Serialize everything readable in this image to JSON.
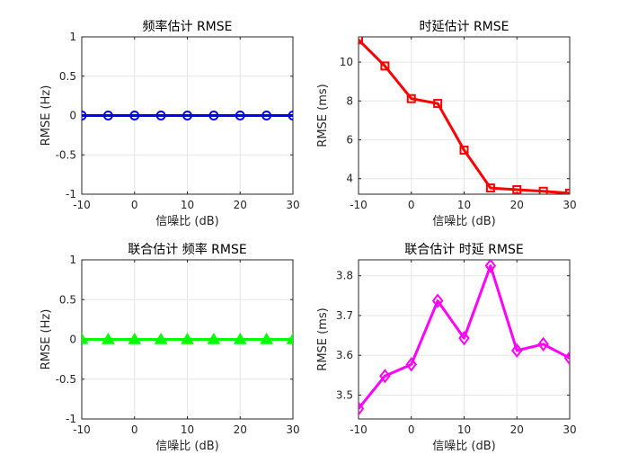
{
  "chart_data": [
    {
      "type": "line",
      "title": "频率估计 RMSE",
      "xlabel": "信噪比 (dB)",
      "ylabel": "RMSE (Hz)",
      "xlim": [
        -10,
        30
      ],
      "ylim": [
        -1,
        1
      ],
      "xticks": [
        "-10",
        "0",
        "10",
        "20",
        "30"
      ],
      "yticks": [
        "-1",
        "-0.5",
        "0",
        "0.5",
        "1"
      ],
      "grid": true,
      "color": "#0000ff",
      "marker": "circle",
      "series": [
        {
          "x": [
            -10,
            -5,
            0,
            5,
            10,
            15,
            20,
            25,
            30
          ],
          "values": [
            0,
            0,
            0,
            0,
            0,
            0,
            0,
            0,
            0
          ]
        }
      ]
    },
    {
      "type": "line",
      "title": "时延估计 RMSE",
      "xlabel": "信噪比 (dB)",
      "ylabel": "RMSE (ms)",
      "xlim": [
        -10,
        30
      ],
      "ylim": [
        3.2,
        11.3
      ],
      "xticks": [
        "-10",
        "0",
        "10",
        "20",
        "30"
      ],
      "yticks": [
        "4",
        "6",
        "8",
        "10"
      ],
      "grid": true,
      "color": "#ff0000",
      "marker": "square",
      "series": [
        {
          "x": [
            -10,
            -5,
            0,
            5,
            10,
            15,
            20,
            25,
            30
          ],
          "values": [
            11.15,
            9.8,
            8.12,
            7.87,
            5.47,
            3.52,
            3.43,
            3.35,
            3.25
          ]
        }
      ]
    },
    {
      "type": "line",
      "title": "联合估计 频率 RMSE",
      "xlabel": "信噪比 (dB)",
      "ylabel": "RMSE (Hz)",
      "xlim": [
        -10,
        30
      ],
      "ylim": [
        -1,
        1
      ],
      "xticks": [
        "-10",
        "0",
        "10",
        "20",
        "30"
      ],
      "yticks": [
        "-1",
        "-0.5",
        "0",
        "0.5",
        "1"
      ],
      "grid": true,
      "color": "#00ff00",
      "marker": "triangle",
      "series": [
        {
          "x": [
            -10,
            -5,
            0,
            5,
            10,
            15,
            20,
            25,
            30
          ],
          "values": [
            0,
            0,
            0,
            0,
            0,
            0,
            0,
            0,
            0
          ]
        }
      ]
    },
    {
      "type": "line",
      "title": "联合估计 时延 RMSE",
      "xlabel": "信噪比 (dB)",
      "ylabel": "RMSE (ms)",
      "xlim": [
        -10,
        30
      ],
      "ylim": [
        3.44,
        3.84
      ],
      "xticks": [
        "-10",
        "0",
        "10",
        "20",
        "30"
      ],
      "yticks": [
        "3.5",
        "3.6",
        "3.7",
        "3.8"
      ],
      "grid": true,
      "color": "#ff00ff",
      "marker": "diamond",
      "series": [
        {
          "x": [
            -10,
            -5,
            0,
            5,
            10,
            15,
            20,
            25,
            30
          ],
          "values": [
            3.466,
            3.548,
            3.577,
            3.737,
            3.643,
            3.825,
            3.612,
            3.628,
            3.593
          ]
        }
      ]
    }
  ]
}
